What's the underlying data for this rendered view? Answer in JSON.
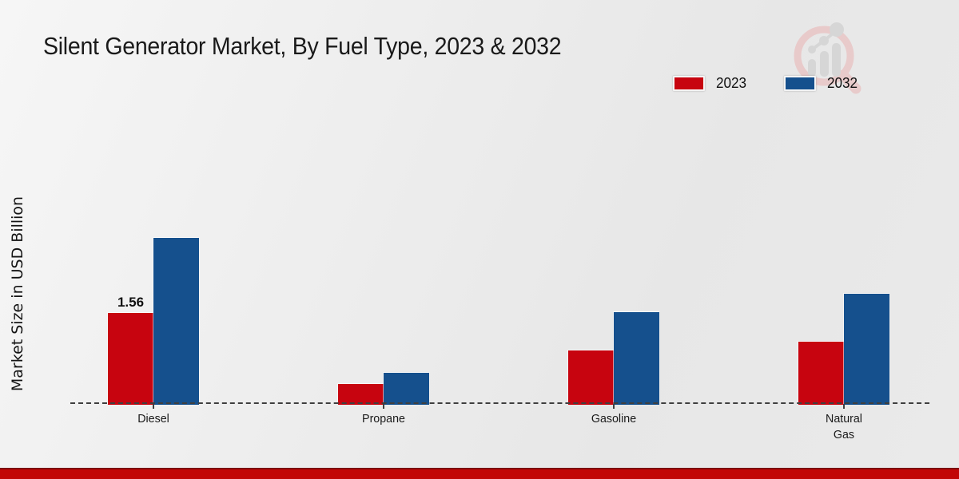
{
  "chart_data": {
    "type": "bar",
    "title": "Silent Generator Market, By Fuel Type, 2023 & 2032",
    "xlabel": "",
    "ylabel": "Market Size in USD Billion",
    "categories": [
      "Diesel",
      "Propane",
      "Gasoline",
      "Natural Gas"
    ],
    "series": [
      {
        "name": "2023",
        "color": "#c7040f",
        "values": [
          1.56,
          0.35,
          0.92,
          1.07
        ]
      },
      {
        "name": "2032",
        "color": "#15508d",
        "values": [
          2.84,
          0.54,
          1.57,
          1.89
        ]
      }
    ],
    "ylim": [
      0,
      3.2
    ],
    "grid": false,
    "axis_style": "dashed-baseline-only",
    "legend_position": "top-right",
    "annotations": [
      {
        "series": 0,
        "category": 0,
        "text": "1.56"
      }
    ]
  },
  "branding": {
    "watermark_icon": "magnifier-bar-chart-logo",
    "watermark_circle_color": "#e9c4c4",
    "watermark_bars_color": "#d2d2d2",
    "footer_stripe_color": "#c20606"
  }
}
